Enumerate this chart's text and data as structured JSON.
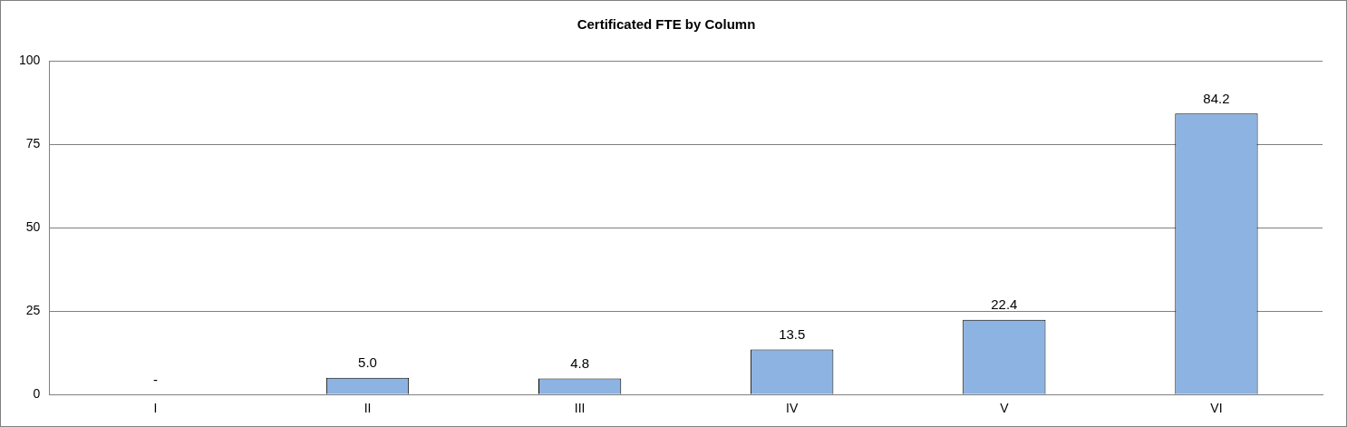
{
  "chart_data": {
    "type": "bar",
    "title": "Certificated FTE by Column",
    "categories": [
      "I",
      "II",
      "III",
      "IV",
      "V",
      "VI"
    ],
    "values": [
      0,
      5.0,
      4.8,
      13.5,
      22.4,
      84.2
    ],
    "value_labels": [
      "-",
      "5.0",
      "4.8",
      "13.5",
      "22.4",
      "84.2"
    ],
    "color": "#8db3e2",
    "ylim": [
      0,
      100
    ],
    "yticks": [
      0,
      25,
      50,
      75,
      100
    ],
    "grid": "y",
    "legend": false
  }
}
